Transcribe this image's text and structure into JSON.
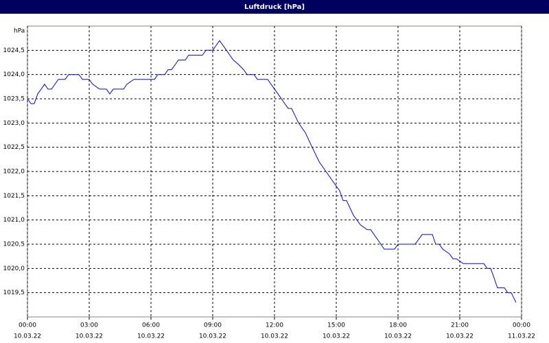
{
  "chart_data": {
    "type": "line",
    "title": "Luftdruck [hPa]",
    "y_label": "hPa",
    "color": "#0000ff",
    "grid": true,
    "xlim": [
      0,
      24
    ],
    "ylim": [
      1019,
      1025
    ],
    "xticks": [
      {
        "value": 0,
        "label": "00:00",
        "date": "10.03.22"
      },
      {
        "value": 3,
        "label": "03:00",
        "date": "10.03.22"
      },
      {
        "value": 6,
        "label": "06:00",
        "date": "10.03.22"
      },
      {
        "value": 9,
        "label": "09:00",
        "date": "10.03.22"
      },
      {
        "value": 12,
        "label": "12:00",
        "date": "10.03.22"
      },
      {
        "value": 15,
        "label": "15:00",
        "date": "10.03.22"
      },
      {
        "value": 18,
        "label": "18:00",
        "date": "10.03.22"
      },
      {
        "value": 21,
        "label": "21:00",
        "date": "10.03.22"
      },
      {
        "value": 24,
        "label": "00:00",
        "date": "11.03.22"
      }
    ],
    "yticks": [
      {
        "value": 1019.5,
        "label": "1019,5"
      },
      {
        "value": 1020,
        "label": "1020,0"
      },
      {
        "value": 1020.5,
        "label": "1020,5"
      },
      {
        "value": 1021,
        "label": "1021,0"
      },
      {
        "value": 1021.5,
        "label": "1021,5"
      },
      {
        "value": 1022,
        "label": "1022,0"
      },
      {
        "value": 1022.5,
        "label": "1022,5"
      },
      {
        "value": 1023,
        "label": "1023,0"
      },
      {
        "value": 1023.5,
        "label": "1023,5"
      },
      {
        "value": 1024,
        "label": "1024,0"
      },
      {
        "value": 1024.5,
        "label": "1024,5"
      }
    ],
    "x": [
      0,
      0.17,
      0.33,
      0.5,
      0.67,
      0.83,
      1,
      1.17,
      1.5,
      1.83,
      2,
      2.5,
      2.67,
      3,
      3.17,
      3.5,
      3.83,
      4,
      4.17,
      4.67,
      4.83,
      5.17,
      6.17,
      6.33,
      6.67,
      6.83,
      7,
      7.17,
      7.33,
      7.67,
      7.83,
      8.5,
      8.67,
      9,
      9.33,
      9.67,
      9.83,
      10,
      10.27,
      10.5,
      10.67,
      11,
      11.17,
      11.67,
      11.83,
      12.17,
      12.5,
      12.67,
      12.83,
      13.17,
      13.5,
      13.83,
      14.17,
      14.5,
      14.83,
      15.17,
      15.33,
      15.5,
      15.83,
      16.17,
      16.5,
      16.67,
      17,
      17.33,
      17.83,
      18,
      18.83,
      19.17,
      19.67,
      19.83,
      20,
      20.17,
      20.5,
      20.67,
      20.83,
      21.17,
      22.17,
      22.33,
      22.5,
      22.67,
      22.83,
      23.17,
      23.33,
      23.5,
      23.73
    ],
    "values": [
      1023.5,
      1023.4,
      1023.4,
      1023.6,
      1023.7,
      1023.8,
      1023.7,
      1023.7,
      1023.9,
      1023.9,
      1024.0,
      1024.0,
      1023.9,
      1023.9,
      1023.8,
      1023.7,
      1023.7,
      1023.6,
      1023.7,
      1023.7,
      1023.8,
      1023.9,
      1023.9,
      1024.0,
      1024.0,
      1024.1,
      1024.1,
      1024.2,
      1024.3,
      1024.3,
      1024.4,
      1024.4,
      1024.5,
      1024.5,
      1024.7,
      1024.5,
      1024.4,
      1024.3,
      1024.2,
      1024.1,
      1024.0,
      1024.0,
      1023.9,
      1023.9,
      1023.8,
      1023.6,
      1023.4,
      1023.3,
      1023.3,
      1023.0,
      1022.8,
      1022.5,
      1022.2,
      1022.0,
      1021.8,
      1021.6,
      1021.4,
      1021.4,
      1021.1,
      1020.9,
      1020.8,
      1020.8,
      1020.6,
      1020.4,
      1020.4,
      1020.5,
      1020.5,
      1020.7,
      1020.7,
      1020.5,
      1020.5,
      1020.4,
      1020.3,
      1020.2,
      1020.2,
      1020.1,
      1020.1,
      1020.0,
      1020.0,
      1019.8,
      1019.6,
      1019.6,
      1019.5,
      1019.5,
      1019.3
    ]
  }
}
